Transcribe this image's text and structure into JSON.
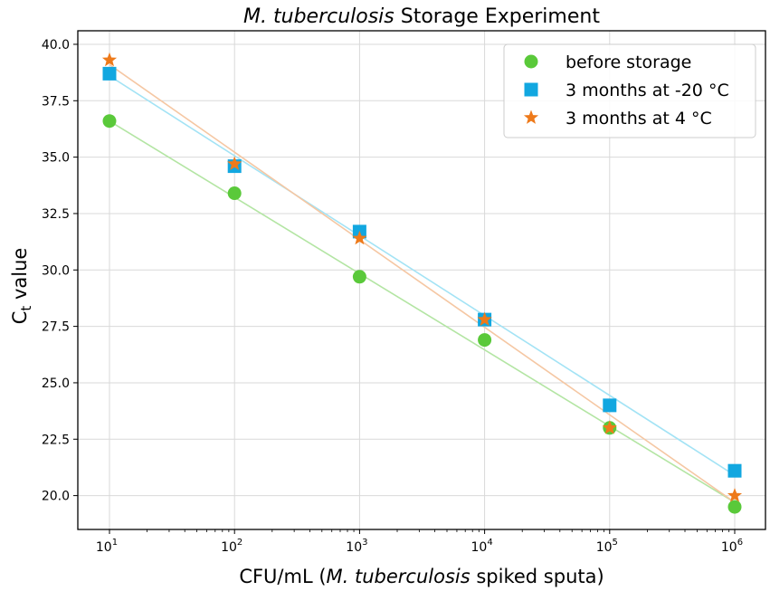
{
  "chart_data": {
    "type": "scatter",
    "title": {
      "italic": "M. tuberculosis",
      "rest": " Storage Experiment"
    },
    "xlabel": {
      "pre": "CFU/mL (",
      "italic": "M. tuberculosis",
      "post": " spiked sputa)"
    },
    "ylabel": {
      "main": "C",
      "sub": "t",
      "post": " value"
    },
    "x_scale": "log",
    "x_exponents": [
      1,
      2,
      3,
      4,
      5,
      6
    ],
    "x_base": "10",
    "ylim": [
      18.5,
      40.6
    ],
    "yticks": [
      "20.0",
      "22.5",
      "25.0",
      "27.5",
      "30.0",
      "32.5",
      "35.0",
      "37.5",
      "40.0"
    ],
    "grid": true,
    "legend_position": "top-right",
    "series": [
      {
        "name": "before storage",
        "marker": "circle",
        "color": "#5ac93a",
        "line_color": "#b3e5a3",
        "x": [
          10,
          100,
          1000,
          10000,
          100000,
          1000000
        ],
        "values": [
          36.6,
          33.4,
          29.7,
          26.9,
          23.0,
          19.5
        ],
        "fit": [
          36.6,
          19.7
        ]
      },
      {
        "name": "3 months at -20 °C",
        "marker": "square",
        "color": "#12a7e0",
        "line_color": "#a3e3f5",
        "x": [
          10,
          100,
          1000,
          10000,
          100000,
          1000000
        ],
        "values": [
          38.7,
          34.6,
          31.7,
          27.8,
          24.0,
          21.1
        ],
        "fit": [
          38.6,
          20.9
        ]
      },
      {
        "name": "3 months at 4 °C",
        "marker": "star",
        "color": "#ee7a1a",
        "line_color": "#f5c7a3",
        "x": [
          10,
          100,
          1000,
          10000,
          100000,
          1000000
        ],
        "values": [
          39.3,
          34.7,
          31.4,
          27.8,
          23.0,
          20.0
        ],
        "fit": [
          39.1,
          19.7
        ]
      }
    ]
  }
}
